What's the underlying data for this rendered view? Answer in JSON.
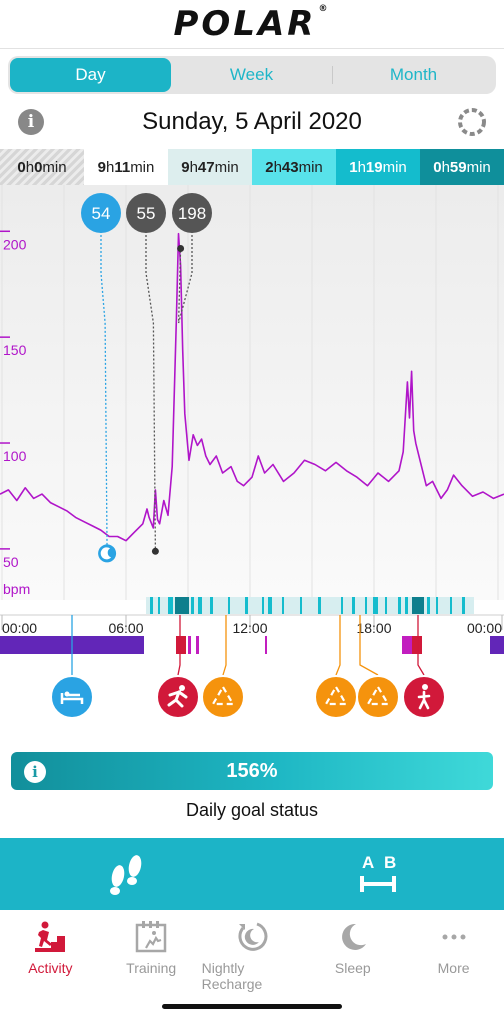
{
  "brand": {
    "logo": "POLAR",
    "reg": "®"
  },
  "tabs": [
    {
      "label": "Day",
      "active": true
    },
    {
      "label": "Week",
      "active": false
    },
    {
      "label": "Month",
      "active": false
    }
  ],
  "date": "Sunday, 5 April 2020",
  "zones": [
    {
      "h": "0",
      "m": "0",
      "bg": "#e0e0e0",
      "color": "#222",
      "hatched": true
    },
    {
      "h": "9",
      "m": "11",
      "bg": "#ffffff",
      "color": "#222"
    },
    {
      "h": "9",
      "m": "47",
      "bg": "#ddeeee",
      "color": "#222"
    },
    {
      "h": "2",
      "m": "43",
      "bg": "#58e2ea",
      "color": "#222"
    },
    {
      "h": "1",
      "m": "19",
      "bg": "#14bccd",
      "color": "#ffffff"
    },
    {
      "h": "0",
      "m": "59",
      "bg": "#0f8f9b",
      "color": "#ffffff"
    }
  ],
  "zone_units": {
    "h": "h",
    "m": "min"
  },
  "chart_data": {
    "type": "line",
    "title": "",
    "ylabel": "bpm",
    "yticks": [
      50,
      100,
      150,
      200
    ],
    "ylim": [
      32,
      228
    ],
    "xlim": [
      0,
      24
    ],
    "xticks": [
      "00:00",
      "06:00",
      "12:00",
      "18:00",
      "00:00"
    ],
    "series": [
      {
        "values": [
          [
            0,
            82
          ],
          [
            0.4,
            84
          ],
          [
            0.8,
            79
          ],
          [
            1.2,
            85
          ],
          [
            1.6,
            80
          ],
          [
            2,
            82
          ],
          [
            2.4,
            78
          ],
          [
            2.8,
            76
          ],
          [
            3.2,
            74
          ],
          [
            3.6,
            71
          ],
          [
            4,
            69
          ],
          [
            4.4,
            67
          ],
          [
            4.8,
            65
          ],
          [
            5.2,
            62
          ],
          [
            5.6,
            62
          ],
          [
            6,
            60
          ],
          [
            6.4,
            64
          ],
          [
            6.8,
            68
          ],
          [
            7,
            75
          ],
          [
            7.1,
            71
          ],
          [
            7.3,
            66
          ],
          [
            7.4,
            84
          ],
          [
            7.5,
            70
          ],
          [
            7.6,
            68
          ],
          [
            7.8,
            79
          ],
          [
            8,
            72
          ],
          [
            8.2,
            95
          ],
          [
            8.4,
            165
          ],
          [
            8.5,
            205
          ],
          [
            8.6,
            190
          ],
          [
            8.7,
            150
          ],
          [
            8.8,
            120
          ],
          [
            9,
            98
          ],
          [
            9.2,
            110
          ],
          [
            9.4,
            105
          ],
          [
            9.6,
            108
          ],
          [
            9.8,
            100
          ],
          [
            10,
            96
          ],
          [
            10.3,
            100
          ],
          [
            10.6,
            92
          ],
          [
            11,
            95
          ],
          [
            11.3,
            88
          ],
          [
            11.6,
            86
          ],
          [
            12,
            90
          ],
          [
            12.3,
            100
          ],
          [
            12.6,
            92
          ],
          [
            13,
            96
          ],
          [
            13.5,
            88
          ],
          [
            14,
            92
          ],
          [
            14.5,
            98
          ],
          [
            15,
            96
          ],
          [
            15.5,
            93
          ],
          [
            16,
            97
          ],
          [
            16.5,
            93
          ],
          [
            17,
            90
          ],
          [
            17.5,
            86
          ],
          [
            18,
            92
          ],
          [
            18.5,
            88
          ],
          [
            19,
            93
          ],
          [
            19.2,
            102
          ],
          [
            19.4,
            135
          ],
          [
            19.5,
            118
          ],
          [
            19.6,
            140
          ],
          [
            19.7,
            112
          ],
          [
            19.8,
            106
          ],
          [
            20,
            98
          ],
          [
            20.3,
            86
          ],
          [
            20.6,
            88
          ],
          [
            21,
            80
          ],
          [
            21.3,
            84
          ],
          [
            21.6,
            91
          ],
          [
            22,
            86
          ],
          [
            22.5,
            81
          ],
          [
            23,
            83
          ],
          [
            23.5,
            80
          ],
          [
            24,
            82
          ]
        ]
      }
    ],
    "markers": [
      {
        "label": "54",
        "color": "#2aa3e3",
        "value": 54,
        "time": 5.1,
        "kind": "min"
      },
      {
        "label": "55",
        "color": "#555555",
        "value": 55,
        "time": 7.4,
        "kind": "rest"
      },
      {
        "label": "198",
        "color": "#555555",
        "value": 198,
        "time": 8.6,
        "kind": "max"
      }
    ],
    "legend": "none"
  },
  "timeline": {
    "events": [
      {
        "icon": "sleep-icon",
        "color": "#2aa3e3",
        "time": 3.4
      },
      {
        "icon": "running-icon",
        "color": "#d1193a",
        "time": 8.5
      },
      {
        "icon": "inactivity-alert-icon",
        "color": "#f5930d",
        "time": 10.6
      },
      {
        "icon": "inactivity-alert-icon",
        "color": "#f5930d",
        "time": 16.0
      },
      {
        "icon": "inactivity-alert-icon",
        "color": "#f5930d",
        "time": 17.8
      },
      {
        "icon": "walking-icon",
        "color": "#d1193a",
        "time": 19.8
      }
    ]
  },
  "goal": {
    "percent": "156%",
    "label": "Daily goal status"
  },
  "actions": [
    {
      "icon": "steps-icon"
    },
    {
      "icon": "distance-ab-icon",
      "a": "A",
      "b": "B"
    }
  ],
  "nav": [
    {
      "label": "Activity",
      "icon": "activity-icon",
      "active": true
    },
    {
      "label": "Training",
      "icon": "training-icon",
      "active": false
    },
    {
      "label": "Nightly Recharge",
      "icon": "nightly-recharge-icon",
      "active": false
    },
    {
      "label": "Sleep",
      "icon": "sleep-moon-icon",
      "active": false
    },
    {
      "label": "More",
      "icon": "more-icon",
      "active": false
    }
  ]
}
